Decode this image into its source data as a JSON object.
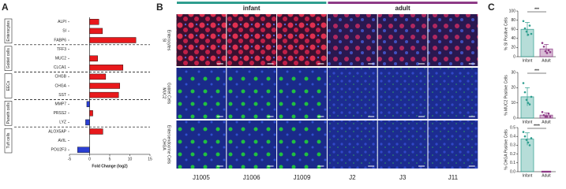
{
  "panel_labels": [
    "A",
    "B",
    "C"
  ],
  "images": {
    "groups": [
      {
        "name": "infant",
        "color": "#2f9e8f",
        "columns": [
          "J1005",
          "J1006",
          "J1009"
        ]
      },
      {
        "name": "adult",
        "color": "#8e3b86",
        "columns": [
          "J2",
          "J3",
          "J11"
        ]
      }
    ],
    "rows": [
      [
        "SI",
        "Enterocytes"
      ],
      [
        "MUC2",
        "Goblet Cells"
      ],
      [
        "CHGA",
        "Enteroendocrine Cells"
      ]
    ]
  },
  "chart_data": [
    {
      "type": "hbar",
      "x_label": "Fold Change (log2)",
      "xlim": [
        -5,
        15
      ],
      "xticks": [
        -5,
        0,
        5,
        10,
        15
      ],
      "color_positive": "#e8191c",
      "color_negative": "#2b3fd4",
      "groups": [
        {
          "name": "Enterocytes",
          "categories": [
            "ALPI",
            "SI",
            "FABP6"
          ],
          "values": [
            2.3,
            3.2,
            11.5
          ]
        },
        {
          "name": "Goblet cells",
          "categories": [
            "TFF3",
            "MUC2",
            "CLCA1"
          ],
          "values": [
            0,
            2,
            8.3
          ]
        },
        {
          "name": "EECs",
          "categories": [
            "CHGB",
            "CHGA",
            "SST"
          ],
          "values": [
            4,
            7.5,
            7.2
          ]
        },
        {
          "name": "Paneth cells",
          "categories": [
            "MMP7",
            "PRSS2",
            "LYZ"
          ],
          "values": [
            -0.7,
            0.8,
            -1
          ]
        },
        {
          "name": "Tuft cells",
          "categories": [
            "ALOX5AP",
            "AVIL",
            "POU2F3"
          ],
          "values": [
            3.3,
            0,
            -3
          ]
        }
      ]
    },
    {
      "type": "dotbar",
      "y_label": "% SI Positive Cells",
      "categories": [
        "Infant",
        "Adult"
      ],
      "values": [
        60,
        17
      ],
      "errors": [
        15,
        10
      ],
      "points": [
        [
          78,
          62,
          55,
          48,
          68,
          50
        ],
        [
          30,
          22,
          12,
          8,
          14,
          10
        ]
      ],
      "colors": [
        "#2f9e8f",
        "#8e3b86"
      ],
      "ylim": [
        0,
        100
      ],
      "yticks": [
        0,
        20,
        40,
        60,
        80,
        100
      ],
      "annotation": "***"
    },
    {
      "type": "dotbar",
      "y_label": "% MUC2 Positive Cells",
      "categories": [
        "Infant",
        "Adult"
      ],
      "values": [
        14,
        2
      ],
      "errors": [
        6,
        1.5
      ],
      "points": [
        [
          23,
          17,
          12,
          10,
          9,
          14
        ],
        [
          4,
          2,
          1,
          1,
          3,
          1
        ]
      ],
      "colors": [
        "#2f9e8f",
        "#8e3b86"
      ],
      "ylim": [
        0,
        30
      ],
      "yticks": [
        0,
        10,
        20,
        30
      ],
      "annotation": "***"
    },
    {
      "type": "dotbar",
      "y_label": "% CHGA Positive Cells",
      "categories": [
        "Infant",
        "Adult"
      ],
      "values": [
        0.37,
        0
      ],
      "errors": [
        0.07,
        0
      ],
      "points": [
        [
          0.45,
          0.4,
          0.36,
          0.33,
          0.3,
          0.38
        ],
        [
          0,
          0,
          0,
          0,
          0,
          0
        ]
      ],
      "colors": [
        "#2f9e8f",
        "#8e3b86"
      ],
      "ylim": [
        0,
        0.5
      ],
      "yticks": [
        {
          "value": 0,
          "label": "0.0"
        },
        {
          "value": 0.1,
          "label": "0.1"
        },
        {
          "value": 0.2,
          "label": "0.2"
        },
        {
          "value": 0.3,
          "label": "0.3"
        },
        {
          "value": 0.4,
          "label": "0.4"
        },
        {
          "value": 0.5,
          "label": "0.5"
        }
      ],
      "annotation": "****"
    }
  ]
}
